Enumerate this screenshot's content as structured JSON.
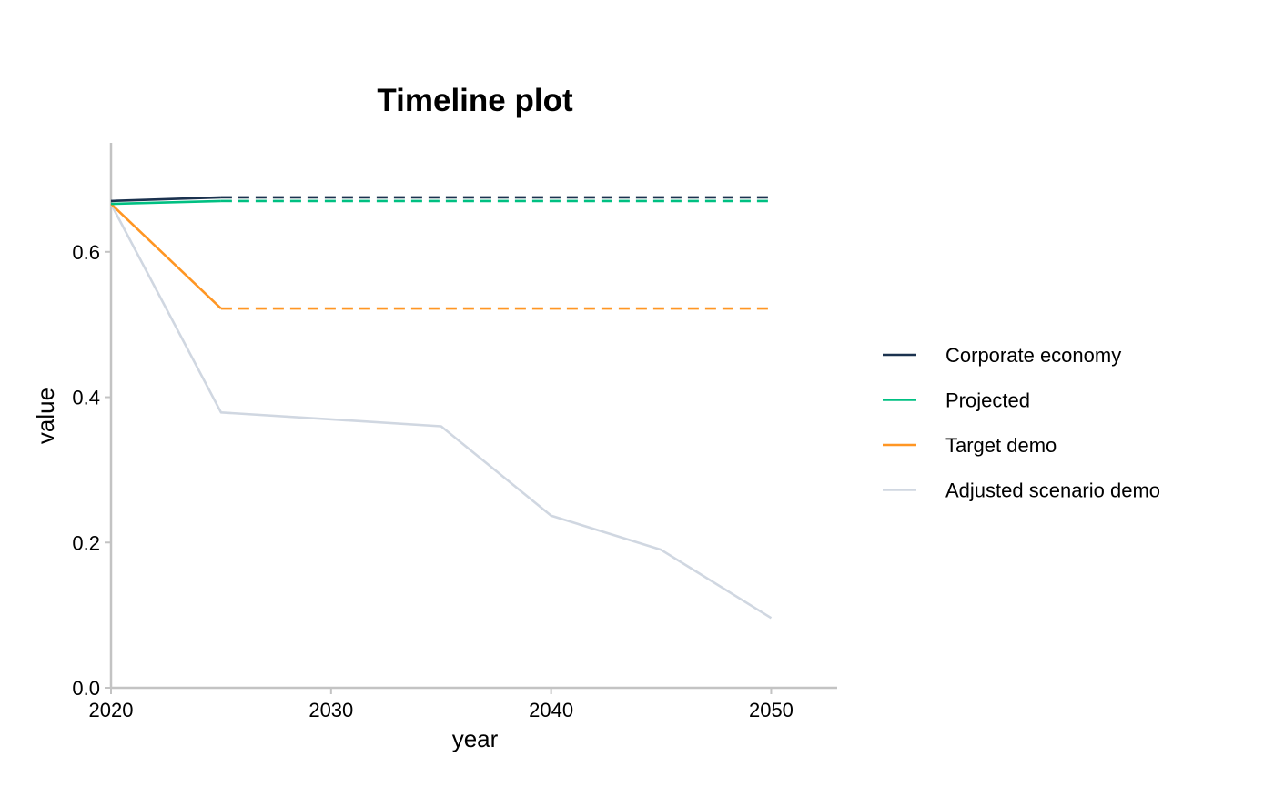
{
  "chart_data": {
    "type": "line",
    "title": "Timeline plot",
    "xlabel": "year",
    "ylabel": "value",
    "xlim": [
      2020,
      2053
    ],
    "ylim": [
      0,
      0.75
    ],
    "xticks": [
      2020,
      2030,
      2040,
      2050
    ],
    "xtick_labels": [
      "2020",
      "2030",
      "2040",
      "2050"
    ],
    "yticks": [
      0,
      0.2,
      0.4,
      0.6
    ],
    "ytick_labels": [
      "0.0",
      "0.2",
      "0.4",
      "0.6"
    ],
    "grid": false,
    "legend_position": "right",
    "series": [
      {
        "name": "Corporate economy",
        "color": "#1b324f",
        "segments": [
          {
            "style": "solid",
            "x": [
              2020,
              2025
            ],
            "y": [
              0.67,
              0.675
            ]
          },
          {
            "style": "dashed",
            "x": [
              2025,
              2050
            ],
            "y": [
              0.675,
              0.675
            ]
          }
        ]
      },
      {
        "name": "Projected",
        "color": "#00c082",
        "segments": [
          {
            "style": "solid",
            "x": [
              2020,
              2025
            ],
            "y": [
              0.666,
              0.67
            ]
          },
          {
            "style": "dashed",
            "x": [
              2025,
              2050
            ],
            "y": [
              0.67,
              0.67
            ]
          }
        ]
      },
      {
        "name": "Target demo",
        "color": "#ff9623",
        "segments": [
          {
            "style": "solid",
            "x": [
              2020,
              2025
            ],
            "y": [
              0.666,
              0.522
            ]
          },
          {
            "style": "dashed",
            "x": [
              2025,
              2050
            ],
            "y": [
              0.522,
              0.522
            ]
          }
        ]
      },
      {
        "name": "Adjusted scenario demo",
        "color": "#d0d7e1",
        "segments": [
          {
            "style": "solid",
            "x": [
              2020,
              2025,
              2035,
              2040,
              2045,
              2050
            ],
            "y": [
              0.666,
              0.379,
              0.36,
              0.237,
              0.19,
              0.096
            ]
          }
        ]
      }
    ]
  }
}
